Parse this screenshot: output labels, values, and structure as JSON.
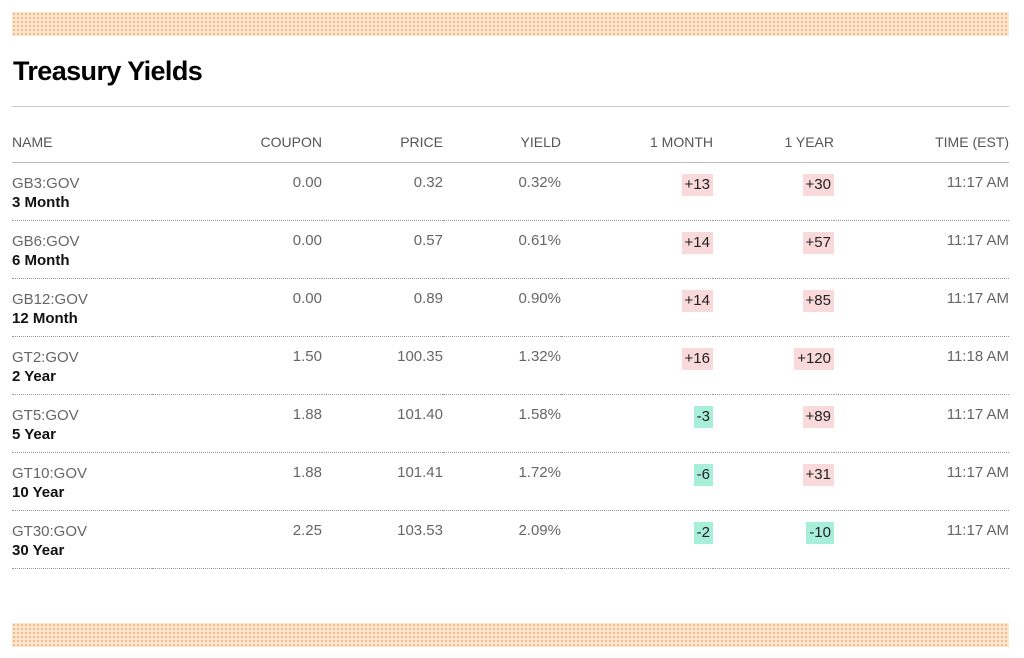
{
  "page": {
    "title": "Treasury Yields"
  },
  "columns": {
    "name": "NAME",
    "coupon": "COUPON",
    "price": "PRICE",
    "yield": "YIELD",
    "one_month": "1 MONTH",
    "one_year": "1 YEAR",
    "time": "TIME (EST)"
  },
  "rows": [
    {
      "ticker": "GB3:GOV",
      "name": "3 Month",
      "coupon": "0.00",
      "price": "0.32",
      "yield": "0.32%",
      "one_month": "+13",
      "one_month_dir": "pos",
      "one_year": "+30",
      "one_year_dir": "pos",
      "time": "11:17 AM"
    },
    {
      "ticker": "GB6:GOV",
      "name": "6 Month",
      "coupon": "0.00",
      "price": "0.57",
      "yield": "0.61%",
      "one_month": "+14",
      "one_month_dir": "pos",
      "one_year": "+57",
      "one_year_dir": "pos",
      "time": "11:17 AM"
    },
    {
      "ticker": "GB12:GOV",
      "name": "12 Month",
      "coupon": "0.00",
      "price": "0.89",
      "yield": "0.90%",
      "one_month": "+14",
      "one_month_dir": "pos",
      "one_year": "+85",
      "one_year_dir": "pos",
      "time": "11:17 AM"
    },
    {
      "ticker": "GT2:GOV",
      "name": "2 Year",
      "coupon": "1.50",
      "price": "100.35",
      "yield": "1.32%",
      "one_month": "+16",
      "one_month_dir": "pos",
      "one_year": "+120",
      "one_year_dir": "pos",
      "time": "11:18 AM"
    },
    {
      "ticker": "GT5:GOV",
      "name": "5 Year",
      "coupon": "1.88",
      "price": "101.40",
      "yield": "1.58%",
      "one_month": "-3",
      "one_month_dir": "neg",
      "one_year": "+89",
      "one_year_dir": "pos",
      "time": "11:17 AM"
    },
    {
      "ticker": "GT10:GOV",
      "name": "10 Year",
      "coupon": "1.88",
      "price": "101.41",
      "yield": "1.72%",
      "one_month": "-6",
      "one_month_dir": "neg",
      "one_year": "+31",
      "one_year_dir": "pos",
      "time": "11:17 AM"
    },
    {
      "ticker": "GT30:GOV",
      "name": "30 Year",
      "coupon": "2.25",
      "price": "103.53",
      "yield": "2.09%",
      "one_month": "-2",
      "one_month_dir": "neg",
      "one_year": "-10",
      "one_year_dir": "neg",
      "time": "11:17 AM"
    }
  ],
  "colors": {
    "positive_bg": "#f9d9d9",
    "negative_bg": "#a8efd9",
    "band": "#fde6cf"
  }
}
